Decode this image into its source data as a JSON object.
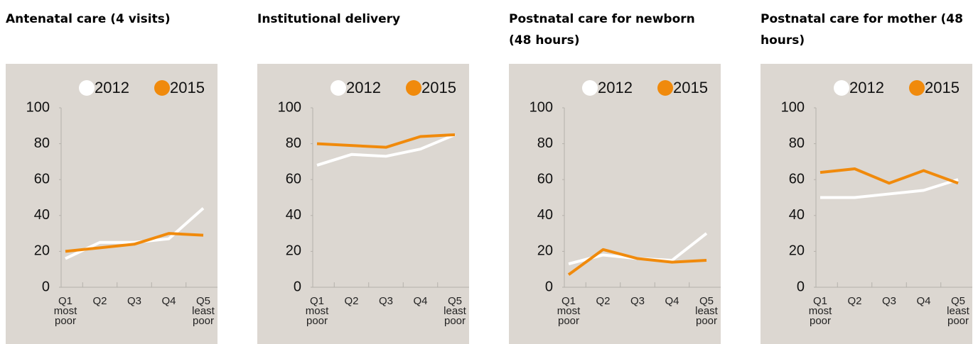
{
  "chart_data": [
    {
      "type": "line",
      "title": "Antenatal care (4 visits)",
      "categories": [
        "Q1 most poor",
        "Q2",
        "Q3",
        "Q4",
        "Q5 least poor"
      ],
      "series": [
        {
          "name": "2012",
          "color": "#ffffff",
          "values": [
            16,
            25,
            25,
            27,
            44
          ]
        },
        {
          "name": "2015",
          "color": "#f08a0c",
          "values": [
            20,
            22,
            24,
            30,
            29
          ]
        }
      ],
      "ylim": [
        0,
        100
      ],
      "yticks": [
        0,
        20,
        40,
        60,
        80,
        100
      ],
      "grid": false
    },
    {
      "type": "line",
      "title": "Institutional delivery",
      "categories": [
        "Q1 most poor",
        "Q2",
        "Q3",
        "Q4",
        "Q5 least poor"
      ],
      "series": [
        {
          "name": "2012",
          "color": "#ffffff",
          "values": [
            68,
            74,
            73,
            77,
            85
          ]
        },
        {
          "name": "2015",
          "color": "#f08a0c",
          "values": [
            80,
            79,
            78,
            84,
            85
          ]
        }
      ],
      "ylim": [
        0,
        100
      ],
      "yticks": [
        0,
        20,
        40,
        60,
        80,
        100
      ],
      "grid": false
    },
    {
      "type": "line",
      "title": "Postnatal care for newborn (48 hours)",
      "categories": [
        "Q1 most poor",
        "Q2",
        "Q3",
        "Q4",
        "Q5 least poor"
      ],
      "series": [
        {
          "name": "2012",
          "color": "#ffffff",
          "values": [
            13,
            18,
            16,
            15,
            30
          ]
        },
        {
          "name": "2015",
          "color": "#f08a0c",
          "values": [
            7,
            21,
            16,
            14,
            15
          ]
        }
      ],
      "ylim": [
        0,
        100
      ],
      "yticks": [
        0,
        20,
        40,
        60,
        80,
        100
      ],
      "grid": false
    },
    {
      "type": "line",
      "title": "Postnatal care for mother (48 hours)",
      "categories": [
        "Q1 most poor",
        "Q2",
        "Q3",
        "Q4",
        "Q5 least poor"
      ],
      "series": [
        {
          "name": "2012",
          "color": "#ffffff",
          "values": [
            50,
            50,
            52,
            54,
            60
          ]
        },
        {
          "name": "2015",
          "color": "#f08a0c",
          "values": [
            64,
            66,
            58,
            65,
            58
          ]
        }
      ],
      "ylim": [
        0,
        100
      ],
      "yticks": [
        0,
        20,
        40,
        60,
        80,
        100
      ],
      "grid": false
    }
  ]
}
